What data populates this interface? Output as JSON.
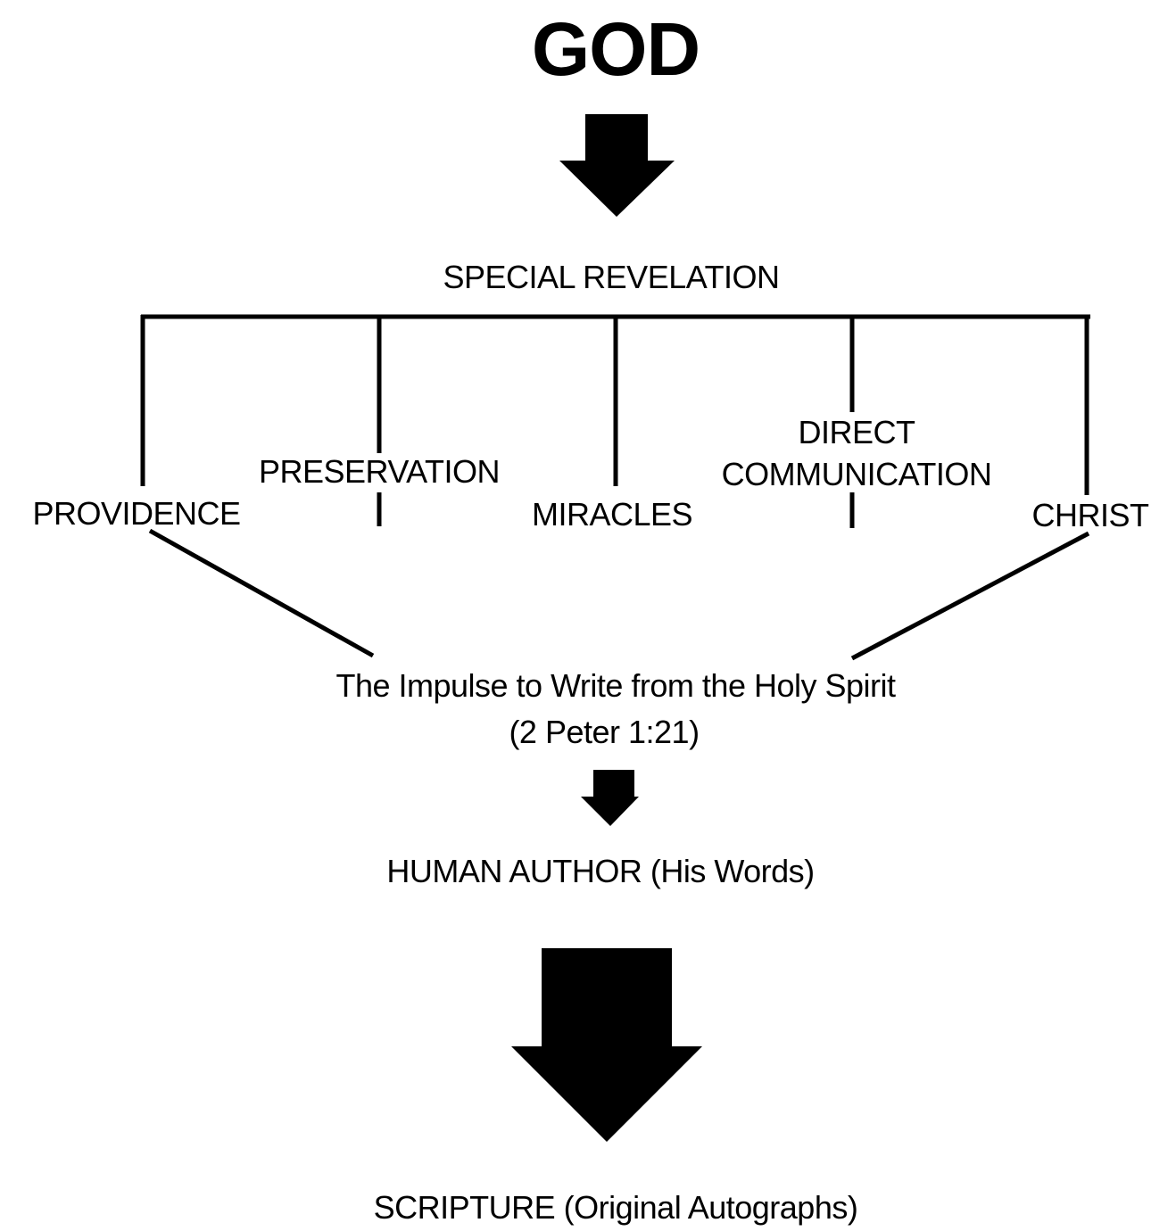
{
  "title": "GOD",
  "special_revelation": "SPECIAL REVELATION",
  "branches": {
    "providence": "PROVIDENCE",
    "preservation": "PRESERVATION",
    "miracles": "MIRACLES",
    "direct_line1": "DIRECT",
    "direct_line2": "COMMUNICATION",
    "christ": "CHRIST"
  },
  "impulse": {
    "line1": "The Impulse to Write from the Holy Spirit",
    "line2": "(2 Peter 1:21)"
  },
  "human_author": "HUMAN AUTHOR (His Words)",
  "scripture": "SCRIPTURE (Original Autographs)",
  "colors": {
    "ink": "#000000",
    "background": "#ffffff"
  }
}
